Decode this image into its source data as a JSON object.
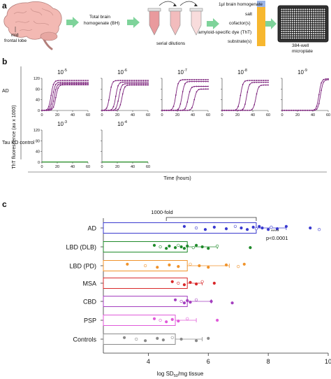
{
  "panel_a": {
    "letter": "a",
    "brain_label": [
      "mid",
      "frontal lobe"
    ],
    "step1_label": [
      "Total brain",
      "homogenate (BH)"
    ],
    "step2_label": "serial dilutions",
    "reagents": [
      "1µl brain homogenate",
      "salt",
      "cofactor(s)",
      "amyloid-specific dye (ThT)",
      "substrate(s)"
    ],
    "plate_label": [
      "384-well",
      "microplate"
    ],
    "colors": {
      "arrow": "#7ed39a",
      "brain": "#f3b9b3",
      "tube1": "#e99a9d",
      "tube2": "#f2bcbd",
      "tube3": "#f8dcdc",
      "reagent_bar": "#f7b72f",
      "reagent_top": "#9bb4e6"
    }
  },
  "panel_b": {
    "letter": "b",
    "ylabel": "ThT fluorescence (au x 1000)",
    "xlabel": "Time (hours)",
    "rows": [
      "AD",
      "Tau KO control"
    ],
    "ad_dilutions": [
      "10",
      "10",
      "10",
      "10",
      "10"
    ],
    "ad_exponents": [
      "-5",
      "-6",
      "-7",
      "-8",
      "-9"
    ],
    "ko_dilutions": [
      "10",
      "10"
    ],
    "ko_exponents": [
      "-3",
      "-4"
    ],
    "yticks": [
      "0",
      "40",
      "80",
      "120"
    ],
    "xticks": [
      "0",
      "20",
      "40",
      "60"
    ],
    "colors": {
      "ad": "#7a1f7a",
      "ko": "#2e9a2e"
    }
  },
  "panel_c": {
    "letter": "c",
    "bracket_label": "1000-fold",
    "stars": "****",
    "pvalue": "p<0.0001",
    "xlabel_main": "log SD",
    "xlabel_sub": "50",
    "xlabel_tail": "/mg tissue",
    "xticks": [
      "4",
      "6",
      "8",
      "10"
    ]
  },
  "chart_data": [
    {
      "type": "line",
      "title": "",
      "xlabel": "Time (hours)",
      "ylabel": "ThT fluorescence (au x 1000)",
      "xlim": [
        0,
        60
      ],
      "ylim": [
        0,
        120
      ],
      "panels": [
        {
          "label": "AD 10^-5",
          "lag": [
            8,
            10,
            12,
            14
          ],
          "plateau": [
            112,
            105,
            100,
            96
          ]
        },
        {
          "label": "AD 10^-6",
          "lag": [
            6,
            14,
            18,
            22
          ],
          "plateau": [
            112,
            106,
            100,
            95
          ]
        },
        {
          "label": "AD 10^-7",
          "lag": [
            14,
            22,
            30,
            38
          ],
          "plateau": [
            115,
            108,
            90,
            80
          ]
        },
        {
          "label": "AD 10^-8",
          "lag": [
            20,
            28,
            40
          ],
          "plateau": [
            112,
            105,
            95
          ]
        },
        {
          "label": "AD 10^-9",
          "lag": [
            44,
            46
          ],
          "plateau": [
            118,
            115
          ]
        },
        {
          "label": "Tau KO 10^-3",
          "lag": [],
          "plateau": []
        },
        {
          "label": "Tau KO 10^-4",
          "lag": [],
          "plateau": []
        }
      ]
    },
    {
      "type": "bar",
      "title": "",
      "xlabel": "log SD50/mg tissue",
      "ylabel": "",
      "xlim": [
        2.5,
        10
      ],
      "orientation": "horizontal",
      "categories": [
        "AD",
        "LBD (DLB)",
        "LBD (PD)",
        "MSA",
        "CBD",
        "PSP",
        "Controls"
      ],
      "values": [
        7.6,
        5.3,
        5.3,
        5.3,
        5.3,
        4.9,
        4.9
      ],
      "errors": [
        1.0,
        1.0,
        1.4,
        0.5,
        0.8,
        0.7,
        0.9
      ],
      "colors": [
        "#3a3acf",
        "#1f8a2a",
        "#f0932b",
        "#d9292b",
        "#a43fbf",
        "#e05ad9",
        "#8a8a8a"
      ],
      "points": [
        [
          5.2,
          5.6,
          5.9,
          6.2,
          6.6,
          6.9,
          7.1,
          7.3,
          7.5,
          7.6,
          7.7,
          7.8,
          8.0,
          8.1,
          8.3,
          8.6,
          9.4,
          9.7
        ],
        [
          4.2,
          4.4,
          4.6,
          4.7,
          4.9,
          5.0,
          5.1,
          5.2,
          5.3,
          5.5,
          5.6,
          5.8,
          6.0,
          6.3,
          7.4
        ],
        [
          3.3,
          3.9,
          4.3,
          4.7,
          5.0,
          5.4,
          5.7,
          6.0,
          6.6,
          7.0,
          7.2
        ],
        [
          4.8,
          5.0,
          5.2,
          5.4,
          5.6,
          5.8,
          6.2
        ],
        [
          4.9,
          5.1,
          5.2,
          5.3,
          5.4,
          5.6,
          6.1,
          6.8
        ],
        [
          4.2,
          4.4,
          4.6,
          4.8,
          5.0,
          5.3,
          6.3
        ],
        [
          3.2,
          3.6,
          3.9,
          4.3,
          4.5,
          4.8,
          5.1,
          5.6,
          6.0
        ]
      ],
      "bracket": [
        4.6,
        7.6
      ]
    }
  ]
}
